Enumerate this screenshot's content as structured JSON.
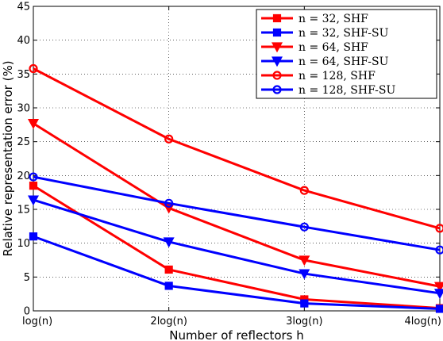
{
  "chart_data": {
    "type": "line",
    "title": "",
    "xlabel": "Number of reflectors h",
    "ylabel": "Relative representation error (%)",
    "x": [
      1,
      2,
      3,
      4
    ],
    "x_tick_labels": [
      "log(n)",
      "2log(n)",
      "3log(n)",
      "4log(n)"
    ],
    "xlim": [
      1,
      4
    ],
    "ylim": [
      0,
      45
    ],
    "y_ticks": [
      0,
      5,
      10,
      15,
      20,
      25,
      30,
      35,
      40,
      45
    ],
    "grid": true,
    "legend_position": "top-right",
    "series": [
      {
        "name": "n = 32, SHF",
        "color": "#ff0000",
        "marker": "square",
        "values": [
          18.5,
          6.1,
          1.7,
          0.4
        ]
      },
      {
        "name": "n = 32, SHF-SU",
        "color": "#0000ff",
        "marker": "square",
        "values": [
          11.0,
          3.7,
          1.1,
          0.3
        ]
      },
      {
        "name": "n = 64, SHF",
        "color": "#ff0000",
        "marker": "triangle-down",
        "values": [
          27.7,
          15.2,
          7.5,
          3.6
        ]
      },
      {
        "name": "n = 64, SHF-SU",
        "color": "#0000ff",
        "marker": "triangle-down",
        "values": [
          16.4,
          10.2,
          5.5,
          2.6
        ]
      },
      {
        "name": "n = 128, SHF",
        "color": "#ff0000",
        "marker": "circle",
        "values": [
          35.8,
          25.4,
          17.8,
          12.2
        ]
      },
      {
        "name": "n = 128, SHF-SU",
        "color": "#0000ff",
        "marker": "circle",
        "values": [
          19.8,
          15.9,
          12.4,
          9.0
        ]
      }
    ]
  }
}
